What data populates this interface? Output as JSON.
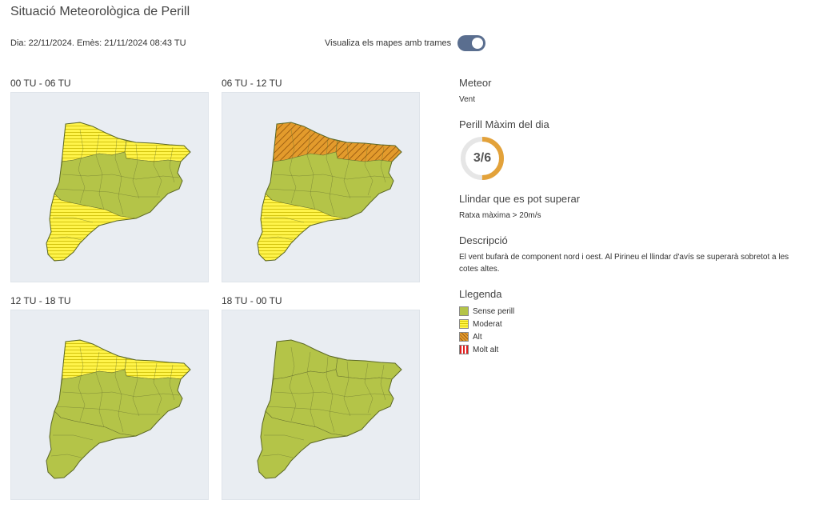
{
  "header": {
    "title": "Situació Meteorològica de Perill",
    "issue_line": "Dia: 22/11/2024. Emès: 21/11/2024 08:43 TU",
    "toggle_label": "Visualiza els mapes amb trames",
    "toggle_on": true
  },
  "maps": [
    {
      "label": "00 TU - 06 TU",
      "zones": {
        "north": "moderat",
        "northeast": "moderat",
        "centre": "sense-perill",
        "south": "moderat"
      }
    },
    {
      "label": "06 TU - 12 TU",
      "zones": {
        "north": "alt",
        "northeast": "alt",
        "centre": "sense-perill",
        "south": "moderat"
      }
    },
    {
      "label": "12 TU - 18 TU",
      "zones": {
        "north": "moderat",
        "northeast": "moderat",
        "centre": "sense-perill",
        "south": "sense-perill"
      }
    },
    {
      "label": "18 TU - 00 TU",
      "zones": {
        "north": "sense-perill",
        "northeast": "sense-perill",
        "centre": "sense-perill",
        "south": "sense-perill"
      }
    }
  ],
  "info": {
    "meteor_heading": "Meteor",
    "meteor_value": "Vent",
    "max_heading": "Perill Màxim del dia",
    "max_value": "3/6",
    "max_fraction": 0.5,
    "threshold_heading": "Llindar que es pot superar",
    "threshold_value": "Ratxa màxima > 20m/s",
    "description_heading": "Descripció",
    "description_text": "El vent bufarà de component nord i oest. Al Pirineu el llindar d'avís se superarà sobretot a les cotes altes.",
    "legend_heading": "Llegenda",
    "legend": [
      {
        "key": "sense-perill",
        "label": "Sense perill"
      },
      {
        "key": "moderat",
        "label": "Moderat"
      },
      {
        "key": "alt",
        "label": "Alt"
      },
      {
        "key": "molt-alt",
        "label": "Molt alt"
      }
    ]
  },
  "colors": {
    "sense_perill": "#b4c448",
    "moderat": "#fff44a",
    "alt": "#e39b2c",
    "molt_alt": "#e02020",
    "gauge_fill": "#e3a23a",
    "gauge_track": "#e6e6e6",
    "toggle": "#5a6e8f"
  }
}
